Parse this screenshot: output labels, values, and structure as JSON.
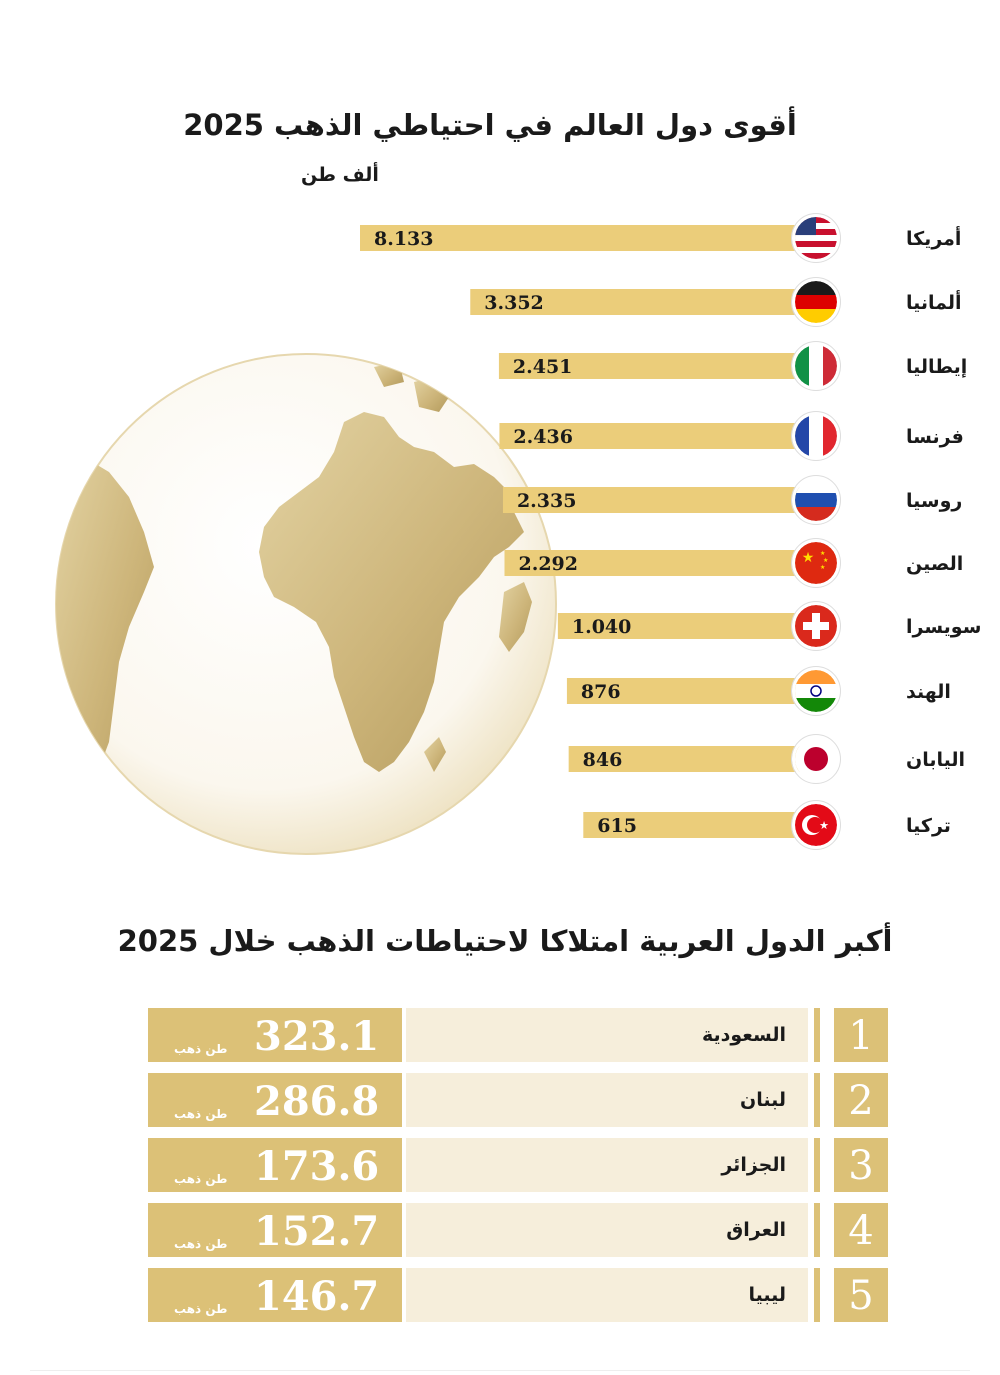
{
  "title": "أقوى دول العالم في احتياطي الذهب 2025",
  "unit_label": "ألف طن",
  "colors": {
    "bar": "#ebcd7a",
    "cell_dark": "#dcc177",
    "cell_light": "#f6eedb"
  },
  "chart_data": [
    {
      "type": "bar",
      "orientation": "horizontal",
      "title": "أقوى دول العالم في احتياطي الذهب 2025",
      "unit": "ألف طن",
      "categories": [
        "أمريكا",
        "ألمانيا",
        "إيطاليا",
        "فرنسا",
        "روسيا",
        "الصين",
        "سويسرا",
        "الهند",
        "اليابان",
        "تركيا"
      ],
      "values": [
        8.133,
        3.352,
        2.451,
        2.436,
        2.335,
        2.292,
        1.04,
        876,
        846,
        615
      ],
      "value_labels": [
        "8.133",
        "3.352",
        "2.451",
        "2.436",
        "2.335",
        "2.292",
        "1.040",
        "876",
        "846",
        "615"
      ],
      "flags": [
        "us-flag-icon",
        "germany-flag-icon",
        "italy-flag-icon",
        "france-flag-icon",
        "russia-flag-icon",
        "china-flag-icon",
        "switzerland-flag-icon",
        "india-flag-icon",
        "japan-flag-icon",
        "turkey-flag-icon"
      ]
    },
    {
      "type": "table",
      "title": "أكبر الدول العربية امتلاكا لاحتياطات الذهب خلال 2025",
      "unit": "طن ذهب",
      "rows": [
        {
          "rank": "1",
          "country": "السعودية",
          "value": "323.1"
        },
        {
          "rank": "2",
          "country": "لبنان",
          "value": "286.8"
        },
        {
          "rank": "3",
          "country": "الجزائر",
          "value": "173.6"
        },
        {
          "rank": "4",
          "country": "العراق",
          "value": "152.7"
        },
        {
          "rank": "5",
          "country": "ليبيا",
          "value": "146.7"
        }
      ]
    }
  ],
  "arab_table": {
    "title": "أكبر الدول العربية امتلاكا لاحتياطات الذهب خلال 2025",
    "unit": "طن ذهب"
  }
}
